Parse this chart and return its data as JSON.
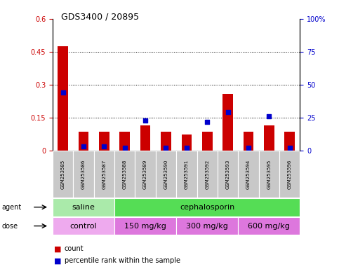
{
  "title": "GDS3400 / 20895",
  "samples": [
    "GSM253585",
    "GSM253586",
    "GSM253587",
    "GSM253588",
    "GSM253589",
    "GSM253590",
    "GSM253591",
    "GSM253592",
    "GSM253593",
    "GSM253594",
    "GSM253595",
    "GSM253596"
  ],
  "count_values": [
    0.475,
    0.085,
    0.085,
    0.085,
    0.115,
    0.085,
    0.075,
    0.085,
    0.26,
    0.085,
    0.115,
    0.085
  ],
  "percentile_values": [
    44,
    3,
    3,
    2,
    23,
    2,
    2,
    22,
    29,
    2,
    26,
    2
  ],
  "count_color": "#cc0000",
  "percentile_color": "#0000cc",
  "ylim_left": [
    0,
    0.6
  ],
  "ylim_right": [
    0,
    100
  ],
  "yticks_left": [
    0,
    0.15,
    0.3,
    0.45,
    0.6
  ],
  "yticks_right": [
    0,
    25,
    50,
    75,
    100
  ],
  "ytick_labels_left": [
    "0",
    "0.15",
    "0.3",
    "0.45",
    "0.6"
  ],
  "ytick_labels_right": [
    "0",
    "25",
    "50",
    "75",
    "100%"
  ],
  "grid_lines": [
    0.15,
    0.3,
    0.45
  ],
  "agent_segments": [
    {
      "label": "saline",
      "start": 0,
      "end": 3,
      "color": "#aaeaaa"
    },
    {
      "label": "cephalosporin",
      "start": 3,
      "end": 12,
      "color": "#55dd55"
    }
  ],
  "dose_segments": [
    {
      "label": "control",
      "start": 0,
      "end": 3,
      "color": "#eeaaee"
    },
    {
      "label": "150 mg/kg",
      "start": 3,
      "end": 6,
      "color": "#dd77dd"
    },
    {
      "label": "300 mg/kg",
      "start": 6,
      "end": 9,
      "color": "#dd77dd"
    },
    {
      "label": "600 mg/kg",
      "start": 9,
      "end": 12,
      "color": "#dd77dd"
    }
  ],
  "tick_bg_color": "#c8c8c8",
  "agent_label": "agent",
  "dose_label": "dose",
  "legend_count_label": "count",
  "legend_percentile_label": "percentile rank within the sample"
}
